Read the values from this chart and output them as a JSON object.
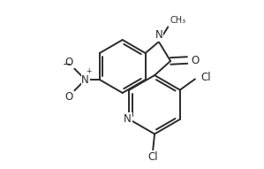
{
  "bg_color": "#ffffff",
  "line_color": "#2a2a2a",
  "line_width": 1.4,
  "font_size": 8.5,
  "figsize": [
    2.99,
    1.91
  ],
  "dpi": 100,
  "xlim": [
    0.0,
    1.0
  ],
  "ylim": [
    0.0,
    1.0
  ]
}
